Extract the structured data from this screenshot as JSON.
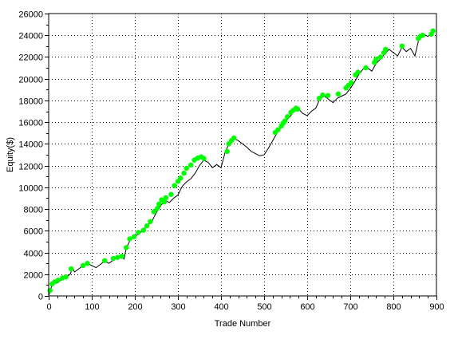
{
  "chart_data": {
    "type": "line",
    "title": "",
    "xlabel": "Trade Number",
    "ylabel": "Equity($)",
    "xlim": [
      0,
      900
    ],
    "ylim": [
      0,
      26000
    ],
    "x_ticks": [
      0,
      100,
      200,
      300,
      400,
      500,
      600,
      700,
      800,
      900
    ],
    "y_ticks": [
      0,
      2000,
      4000,
      6000,
      8000,
      10000,
      12000,
      14000,
      16000,
      18000,
      20000,
      22000,
      24000,
      26000
    ],
    "x_tick_labels": [
      "0",
      "100",
      "200",
      "300",
      "400",
      "500",
      "600",
      "700",
      "800",
      "900"
    ],
    "y_tick_labels": [
      "0",
      "2000",
      "4000",
      "6000",
      "8000",
      "10000",
      "12000",
      "14000",
      "16000",
      "18000",
      "20000",
      "22000",
      "24000",
      "26000"
    ],
    "grid": true,
    "grid_style": "dotted",
    "legend": "none",
    "series": [
      {
        "line_color": "#000000",
        "x": [
          0,
          10,
          20,
          30,
          40,
          50,
          55,
          60,
          70,
          80,
          90,
          100,
          110,
          120,
          130,
          140,
          150,
          160,
          170,
          175,
          180,
          190,
          200,
          210,
          220,
          230,
          240,
          250,
          260,
          270,
          280,
          290,
          300,
          310,
          320,
          330,
          340,
          350,
          360,
          370,
          380,
          390,
          400,
          410,
          420,
          430,
          440,
          450,
          460,
          470,
          480,
          490,
          500,
          510,
          520,
          530,
          540,
          550,
          560,
          570,
          580,
          590,
          600,
          610,
          620,
          630,
          640,
          650,
          660,
          670,
          680,
          690,
          700,
          710,
          720,
          730,
          740,
          750,
          760,
          770,
          780,
          790,
          800,
          810,
          820,
          830,
          840,
          850,
          860,
          870,
          880,
          890,
          895
        ],
        "y": [
          0,
          1300,
          1200,
          1500,
          1700,
          2000,
          2600,
          2200,
          2500,
          2800,
          3000,
          2800,
          2600,
          2900,
          3200,
          3000,
          3300,
          3500,
          3600,
          3400,
          4400,
          5200,
          5500,
          5700,
          6100,
          6500,
          6900,
          7700,
          8300,
          8800,
          8600,
          9000,
          9300,
          10100,
          10500,
          10800,
          11300,
          12000,
          12500,
          12300,
          11800,
          12100,
          11800,
          13300,
          14100,
          14500,
          14300,
          14000,
          13700,
          13300,
          13100,
          12900,
          13000,
          13600,
          14300,
          15000,
          15600,
          16100,
          16500,
          17000,
          17200,
          16800,
          16600,
          17000,
          17300,
          18200,
          18400,
          18100,
          17800,
          18200,
          18400,
          18600,
          19100,
          19700,
          20400,
          20900,
          21000,
          20700,
          21400,
          21800,
          22300,
          22700,
          22400,
          22100,
          22900,
          22500,
          22800,
          22100,
          23800,
          24100,
          23900,
          24200,
          24400
        ]
      }
    ],
    "markers": {
      "color": "#00ff00",
      "x": [
        3,
        8,
        14,
        22,
        32,
        40,
        52,
        80,
        90,
        130,
        150,
        160,
        170,
        180,
        188,
        198,
        208,
        220,
        228,
        236,
        244,
        252,
        256,
        262,
        268,
        272,
        284,
        292,
        300,
        306,
        314,
        320,
        330,
        338,
        346,
        354,
        360,
        414,
        418,
        424,
        430,
        526,
        532,
        540,
        544,
        548,
        554,
        562,
        568,
        574,
        578,
        628,
        636,
        648,
        672,
        690,
        696,
        702,
        712,
        718,
        736,
        756,
        760,
        770,
        778,
        782,
        820,
        858,
        862,
        868,
        888,
        892
      ],
      "y": [
        500,
        1100,
        1300,
        1450,
        1650,
        1750,
        2500,
        2800,
        3000,
        3250,
        3450,
        3550,
        3650,
        4450,
        5250,
        5450,
        5850,
        6050,
        6450,
        6850,
        7750,
        8050,
        8450,
        8850,
        8650,
        9050,
        9350,
        10150,
        10550,
        10850,
        11300,
        11750,
        12050,
        12500,
        12700,
        12800,
        12650,
        13300,
        14000,
        14300,
        14550,
        15050,
        15300,
        15650,
        15900,
        16100,
        16500,
        16900,
        17100,
        17300,
        17200,
        18200,
        18500,
        18450,
        18600,
        19150,
        19400,
        19650,
        20350,
        20600,
        21000,
        21500,
        21800,
        22000,
        22400,
        22700,
        23000,
        23700,
        23900,
        24000,
        24100,
        24400
      ]
    }
  }
}
